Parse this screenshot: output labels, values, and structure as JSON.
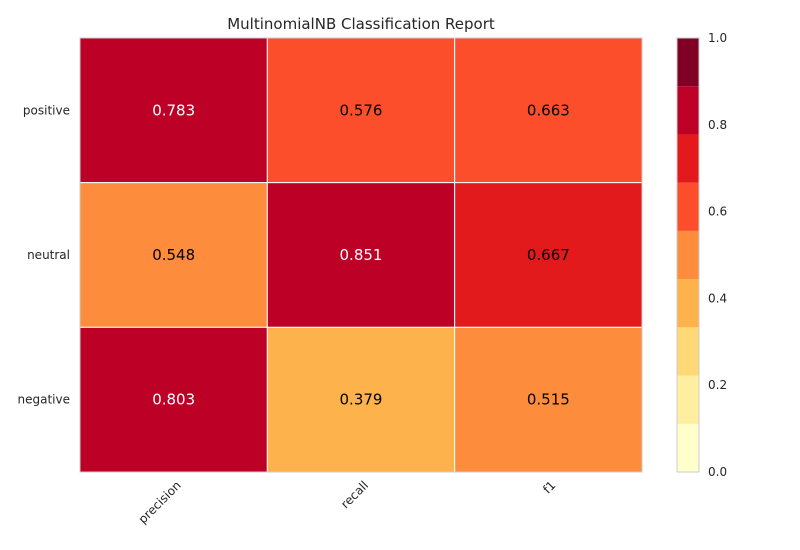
{
  "chart_data": {
    "type": "heatmap",
    "title": "MultinomialNB Classification Report",
    "columns": [
      "precision",
      "recall",
      "f1"
    ],
    "rows": [
      "positive",
      "neutral",
      "negative"
    ],
    "values": [
      [
        0.783,
        0.576,
        0.663
      ],
      [
        0.548,
        0.851,
        0.667
      ],
      [
        0.803,
        0.379,
        0.515
      ]
    ],
    "value_labels": [
      [
        "0.783",
        "0.576",
        "0.663"
      ],
      [
        "0.548",
        "0.851",
        "0.667"
      ],
      [
        "0.803",
        "0.379",
        "0.515"
      ]
    ],
    "colorbar": {
      "range": [
        0.0,
        1.0
      ],
      "tick_labels": [
        "0.0",
        "0.2",
        "0.4",
        "0.6",
        "0.8",
        "1.0"
      ],
      "bins": 9,
      "colors": [
        "#ffffcc",
        "#ffeda0",
        "#fed976",
        "#feb24c",
        "#fd8d3c",
        "#fc4e2a",
        "#e31a1c",
        "#bd0026",
        "#800026"
      ]
    },
    "grid": false
  }
}
